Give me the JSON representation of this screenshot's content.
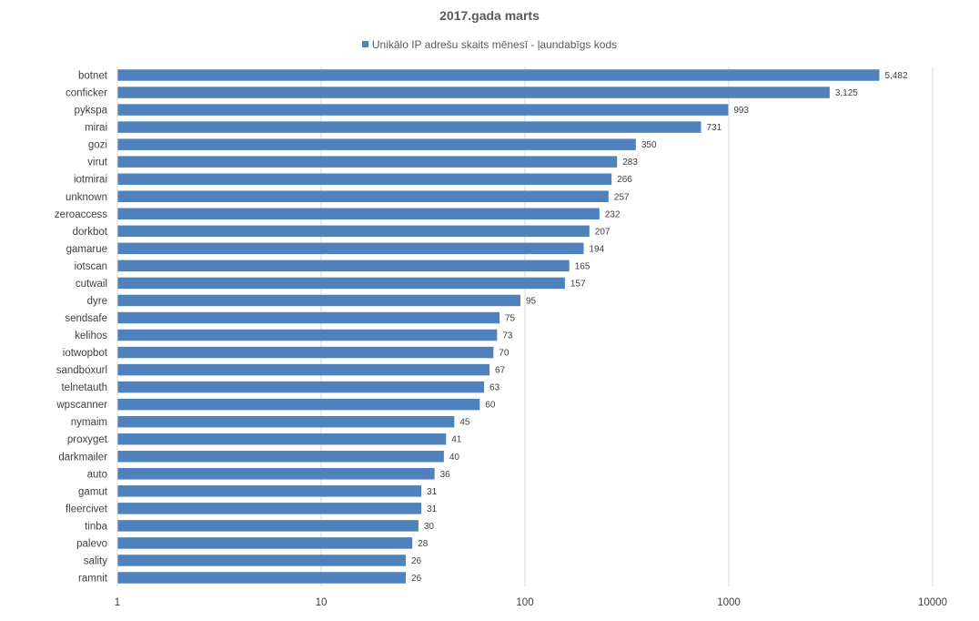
{
  "chart_data": {
    "type": "bar",
    "orientation": "horizontal",
    "title": "2017.gada marts",
    "legend_position": "top",
    "x_scale": "log",
    "xlim": [
      1,
      10000
    ],
    "x_ticks": [
      "1",
      "10",
      "100",
      "1000",
      "10000"
    ],
    "grid": true,
    "bar_color": "#4f81bd",
    "series": [
      {
        "name": "Unikālo IP adrešu skaits mēnesī -  ļaundabīgs kods",
        "values": [
          5482,
          3125,
          993,
          731,
          350,
          283,
          266,
          257,
          232,
          207,
          194,
          165,
          157,
          95,
          75,
          73,
          70,
          67,
          63,
          60,
          45,
          41,
          40,
          36,
          31,
          31,
          30,
          28,
          26,
          26
        ]
      }
    ],
    "categories": [
      "botnet",
      "conficker",
      "pykspa",
      "mirai",
      "gozi",
      "virut",
      "iotmirai",
      "unknown",
      "zeroaccess",
      "dorkbot",
      "gamarue",
      "iotscan",
      "cutwail",
      "dyre",
      "sendsafe",
      "kelihos",
      "iotwopbot",
      "sandboxurl",
      "telnetauth",
      "wpscanner",
      "nymaim",
      "proxyget",
      "darkmailer",
      "auto",
      "gamut",
      "fleercivet",
      "tinba",
      "palevo",
      "sality",
      "ramnit"
    ],
    "value_labels": [
      "5,482",
      "3,125",
      "993",
      "731",
      "350",
      "283",
      "266",
      "257",
      "232",
      "207",
      "194",
      "165",
      "157",
      "95",
      "75",
      "73",
      "70",
      "67",
      "63",
      "60",
      "45",
      "41",
      "40",
      "36",
      "31",
      "31",
      "30",
      "28",
      "26",
      "26"
    ]
  }
}
